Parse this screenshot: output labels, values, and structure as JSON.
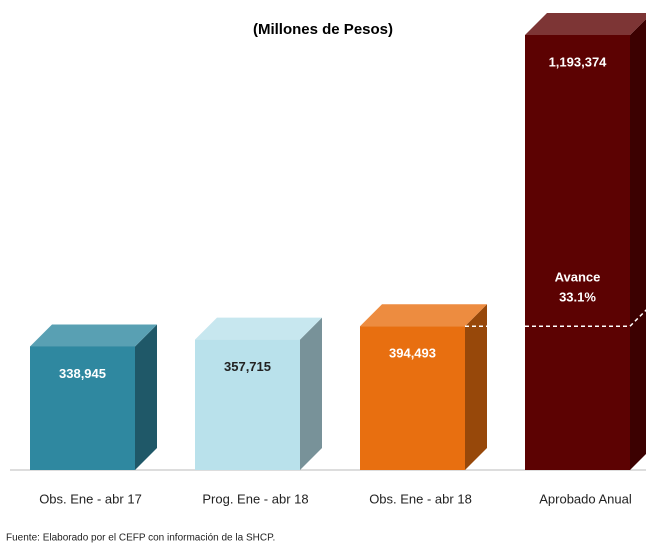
{
  "chart_data": {
    "type": "bar3d",
    "title": "(Millones de Pesos)",
    "categories": [
      "Obs. Ene - abr 17",
      "Prog. Ene - abr 18",
      "Obs. Ene - abr 18",
      "Aprobado Anual"
    ],
    "values": [
      338945,
      357715,
      394493,
      1193374
    ],
    "value_labels": [
      "338,945",
      "357,715",
      "394,493",
      "1,193,374"
    ],
    "colors": [
      "#2f88a0",
      "#b9e1eb",
      "#e86f10",
      "#5c0202"
    ],
    "label_colors": [
      "#ffffff",
      "#222222",
      "#ffffff",
      "#ffffff"
    ],
    "annotation": {
      "label": "Avance",
      "value": 33.1,
      "value_label": "33.1%"
    },
    "source": "Fuente: Elaborado por el CEFP con información de la SHCP."
  }
}
